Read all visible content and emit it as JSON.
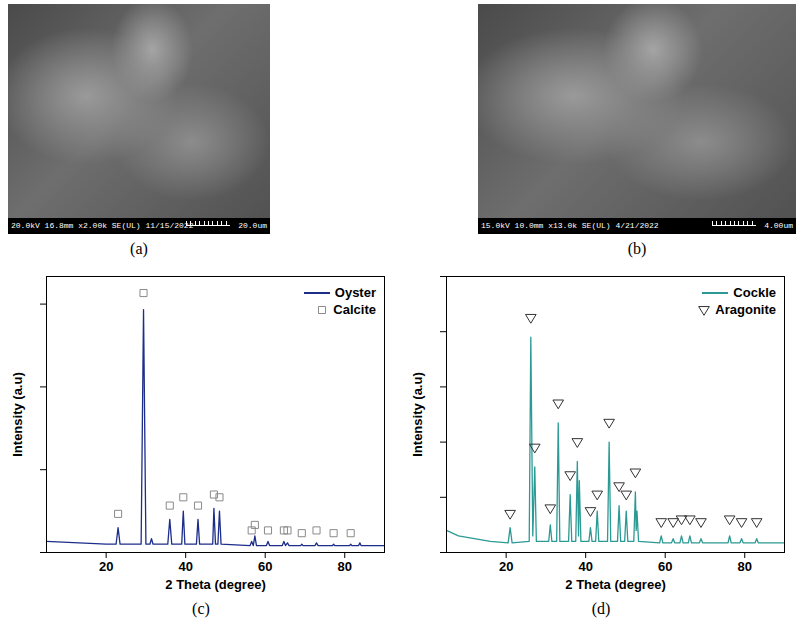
{
  "images": [
    {
      "panel_label": "(a)",
      "info": "20.0kV 16.8mm x2.00k SE(UL) 11/15/2022",
      "scale_bar": "20.0um"
    },
    {
      "panel_label": "(b)",
      "info": "15.0kV 10.0mm x13.0k SE(UL) 4/21/2022",
      "scale_bar": "4.00um"
    }
  ],
  "chart_data": [
    {
      "type": "line",
      "panel_label": "(c)",
      "x_label": "2 Theta (degree)",
      "y_label": "Intensity (a.u)",
      "xlim": [
        5,
        90
      ],
      "xticks": [
        20,
        40,
        60,
        80
      ],
      "ylim": [
        0,
        100
      ],
      "yticks": [
        0,
        30,
        60,
        90
      ],
      "tick_labels": "x",
      "legend": "upper right",
      "series": [
        {
          "name": "Oyster",
          "type": "line",
          "color": "#1c2d8a",
          "x": [
            5,
            20,
            22.5,
            23.0,
            23.5,
            28.8,
            29.4,
            30.0,
            31.0,
            31.4,
            31.8,
            35.5,
            36.0,
            36.5,
            39.0,
            39.4,
            39.8,
            42.7,
            43.1,
            43.5,
            46.8,
            47.1,
            47.5,
            48.1,
            48.5,
            48.9,
            56.2,
            56.6,
            57.0,
            57.4,
            57.8,
            60.3,
            60.7,
            61.1,
            64.3,
            64.7,
            65.1,
            65.6,
            66.0,
            68.9,
            69.2,
            69.5,
            72.5,
            72.9,
            73.3,
            76.9,
            77.2,
            77.5,
            81.2,
            81.5,
            81.8,
            83.5,
            83.8,
            84.1,
            90
          ],
          "values": [
            4,
            3,
            3,
            9,
            3,
            3,
            88,
            3,
            3,
            5,
            3,
            3,
            12,
            3,
            3,
            15,
            3,
            3,
            12,
            3,
            3,
            16,
            3,
            3,
            15,
            3,
            2.5,
            4,
            2.5,
            6,
            2.5,
            2.5,
            4,
            2.5,
            2.5,
            4,
            2.5,
            3.5,
            2.5,
            2.5,
            3,
            2.5,
            2.5,
            3.5,
            2.5,
            2.5,
            3,
            2.5,
            2.5,
            3,
            2.5,
            2.5,
            3.5,
            2.5,
            2.5
          ]
        },
        {
          "name": "Calcite",
          "type": "scatter",
          "marker": "square",
          "color": "#8a8a8a",
          "x": [
            23.0,
            29.4,
            36.0,
            39.4,
            43.1,
            47.1,
            48.5,
            56.6,
            57.4,
            60.7,
            64.7,
            65.6,
            69.2,
            72.9,
            77.2,
            81.5
          ],
          "values": [
            14,
            94,
            17,
            20,
            17,
            21,
            20,
            8,
            10,
            8,
            8,
            8,
            7,
            8,
            7,
            7
          ]
        }
      ]
    },
    {
      "type": "line",
      "panel_label": "(d)",
      "x_label": "2 Theta (degree)",
      "y_label": "Intensity (a.u)",
      "xlim": [
        5,
        90
      ],
      "xticks": [
        20,
        40,
        60,
        80
      ],
      "ylim": [
        0,
        100
      ],
      "yticks": [
        0,
        20,
        40,
        60,
        80,
        100
      ],
      "tick_labels": "x",
      "legend": "upper right",
      "series": [
        {
          "name": "Cockle",
          "type": "line",
          "color": "#2b9a94",
          "x": [
            5,
            8,
            12,
            16,
            20.5,
            21.0,
            21.5,
            25.8,
            26.2,
            26.7,
            27.2,
            27.6,
            30.7,
            31.1,
            31.5,
            32.7,
            33.1,
            33.5,
            35.7,
            36.1,
            36.5,
            37.5,
            37.9,
            38.2,
            38.4,
            38.8,
            40.8,
            41.2,
            41.6,
            42.5,
            42.9,
            43.3,
            45.5,
            45.9,
            46.3,
            48.0,
            48.4,
            48.8,
            49.8,
            50.2,
            50.6,
            52.1,
            52.5,
            52.7,
            52.9,
            53.3,
            58.6,
            59.0,
            59.4,
            61.6,
            62.0,
            62.4,
            63.7,
            64.1,
            64.5,
            65.8,
            66.2,
            66.6,
            68.6,
            69.0,
            69.4,
            75.8,
            76.2,
            76.6,
            78.8,
            79.2,
            79.6,
            82.6,
            83.0,
            83.4,
            90
          ],
          "values": [
            8,
            6,
            5,
            4,
            3.5,
            9,
            3.5,
            4,
            78,
            6,
            31,
            4,
            4,
            10,
            4,
            4,
            47,
            4,
            4,
            21,
            4,
            4,
            33,
            6,
            26,
            4,
            4,
            9,
            4,
            4,
            15,
            4,
            4,
            40,
            4,
            4,
            17,
            4,
            4,
            15,
            4,
            4,
            22,
            8,
            15,
            4,
            3.5,
            6,
            3.5,
            3.5,
            5,
            3.5,
            3.5,
            6,
            3.5,
            3.5,
            6,
            3.5,
            3.5,
            5,
            3.5,
            3.5,
            6,
            3.5,
            3.5,
            5,
            3.5,
            3.5,
            5,
            3.5,
            3.5
          ]
        },
        {
          "name": "Aragonite",
          "type": "scatter",
          "marker": "triangle-down",
          "color": "#333333",
          "x": [
            21.0,
            26.2,
            27.2,
            31.1,
            33.1,
            36.1,
            37.9,
            41.2,
            42.9,
            45.9,
            48.4,
            50.2,
            52.5,
            59.0,
            62.0,
            64.1,
            66.2,
            69.0,
            76.2,
            79.2,
            83.0
          ],
          "values": [
            14,
            85,
            38,
            16,
            54,
            28,
            40,
            15,
            21,
            47,
            24,
            21,
            29,
            11,
            11,
            12,
            12,
            11,
            12,
            11,
            11
          ]
        }
      ]
    }
  ]
}
